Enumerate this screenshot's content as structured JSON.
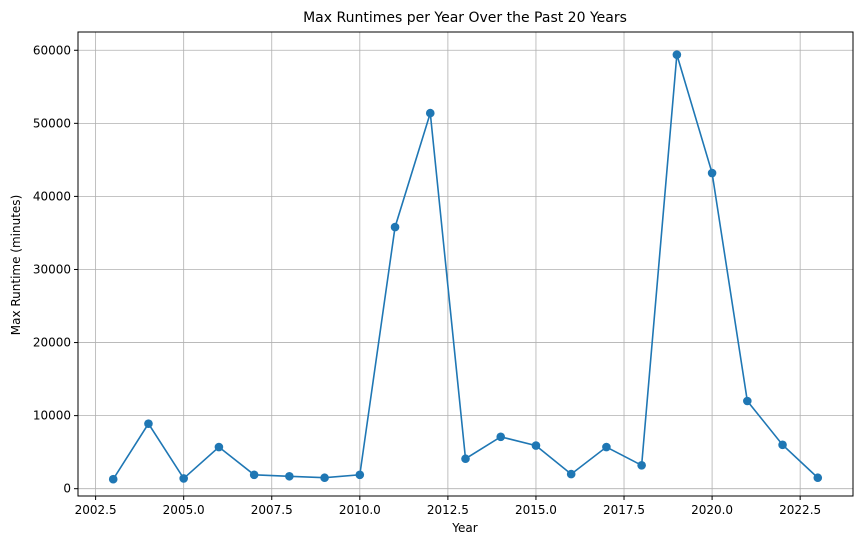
{
  "chart_data": {
    "type": "line",
    "title": "Max Runtimes per Year Over the Past 20 Years",
    "xlabel": "Year",
    "ylabel": "Max Runtime (minutes)",
    "xlim": [
      2002.0,
      2024.0
    ],
    "ylim": [
      -1000,
      62500
    ],
    "xticks": [
      2002.5,
      2005.0,
      2007.5,
      2010.0,
      2012.5,
      2015.0,
      2017.5,
      2020.0,
      2022.5
    ],
    "xtick_labels": [
      "2002.5",
      "2005.0",
      "2007.5",
      "2010.0",
      "2012.5",
      "2015.0",
      "2017.5",
      "2020.0",
      "2022.5"
    ],
    "yticks": [
      0,
      10000,
      20000,
      30000,
      40000,
      50000,
      60000
    ],
    "ytick_labels": [
      "0",
      "10000",
      "20000",
      "30000",
      "40000",
      "50000",
      "60000"
    ],
    "grid": true,
    "series": [
      {
        "color": "#1f77b4",
        "marker": "circle",
        "x": [
          2003,
          2004,
          2005,
          2006,
          2007,
          2008,
          2009,
          2010,
          2011,
          2012,
          2013,
          2014,
          2015,
          2016,
          2017,
          2018,
          2019,
          2020,
          2021,
          2022,
          2023
        ],
        "y": [
          1300,
          8900,
          1400,
          5700,
          1900,
          1700,
          1500,
          1900,
          35800,
          51400,
          4100,
          7100,
          5900,
          2000,
          5700,
          3200,
          59400,
          43200,
          12000,
          6000,
          1500
        ]
      }
    ]
  }
}
